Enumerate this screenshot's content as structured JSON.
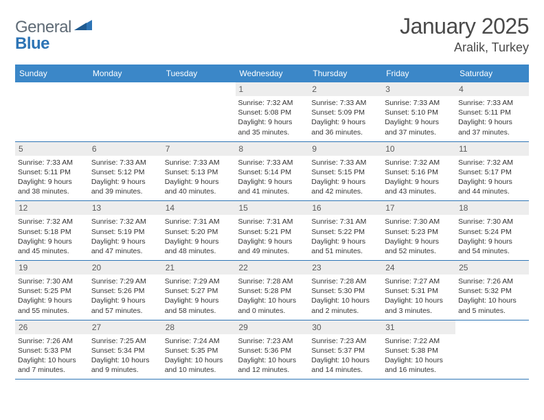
{
  "brand": {
    "part1": "General",
    "part2": "Blue"
  },
  "header": {
    "title": "January 2025",
    "location": "Aralik, Turkey"
  },
  "colors": {
    "header_bg": "#3b87c8",
    "header_text": "#ffffff",
    "daynum_bg": "#ededed",
    "cell_border": "#2d74b5",
    "logo_gray": "#5f6b76",
    "logo_blue": "#2d74b5"
  },
  "weekdays": [
    "Sunday",
    "Monday",
    "Tuesday",
    "Wednesday",
    "Thursday",
    "Friday",
    "Saturday"
  ],
  "weeks": [
    [
      {
        "day": "",
        "lines": []
      },
      {
        "day": "",
        "lines": []
      },
      {
        "day": "",
        "lines": []
      },
      {
        "day": "1",
        "lines": [
          "Sunrise: 7:32 AM",
          "Sunset: 5:08 PM",
          "Daylight: 9 hours",
          "and 35 minutes."
        ]
      },
      {
        "day": "2",
        "lines": [
          "Sunrise: 7:33 AM",
          "Sunset: 5:09 PM",
          "Daylight: 9 hours",
          "and 36 minutes."
        ]
      },
      {
        "day": "3",
        "lines": [
          "Sunrise: 7:33 AM",
          "Sunset: 5:10 PM",
          "Daylight: 9 hours",
          "and 37 minutes."
        ]
      },
      {
        "day": "4",
        "lines": [
          "Sunrise: 7:33 AM",
          "Sunset: 5:11 PM",
          "Daylight: 9 hours",
          "and 37 minutes."
        ]
      }
    ],
    [
      {
        "day": "5",
        "lines": [
          "Sunrise: 7:33 AM",
          "Sunset: 5:11 PM",
          "Daylight: 9 hours",
          "and 38 minutes."
        ]
      },
      {
        "day": "6",
        "lines": [
          "Sunrise: 7:33 AM",
          "Sunset: 5:12 PM",
          "Daylight: 9 hours",
          "and 39 minutes."
        ]
      },
      {
        "day": "7",
        "lines": [
          "Sunrise: 7:33 AM",
          "Sunset: 5:13 PM",
          "Daylight: 9 hours",
          "and 40 minutes."
        ]
      },
      {
        "day": "8",
        "lines": [
          "Sunrise: 7:33 AM",
          "Sunset: 5:14 PM",
          "Daylight: 9 hours",
          "and 41 minutes."
        ]
      },
      {
        "day": "9",
        "lines": [
          "Sunrise: 7:33 AM",
          "Sunset: 5:15 PM",
          "Daylight: 9 hours",
          "and 42 minutes."
        ]
      },
      {
        "day": "10",
        "lines": [
          "Sunrise: 7:32 AM",
          "Sunset: 5:16 PM",
          "Daylight: 9 hours",
          "and 43 minutes."
        ]
      },
      {
        "day": "11",
        "lines": [
          "Sunrise: 7:32 AM",
          "Sunset: 5:17 PM",
          "Daylight: 9 hours",
          "and 44 minutes."
        ]
      }
    ],
    [
      {
        "day": "12",
        "lines": [
          "Sunrise: 7:32 AM",
          "Sunset: 5:18 PM",
          "Daylight: 9 hours",
          "and 45 minutes."
        ]
      },
      {
        "day": "13",
        "lines": [
          "Sunrise: 7:32 AM",
          "Sunset: 5:19 PM",
          "Daylight: 9 hours",
          "and 47 minutes."
        ]
      },
      {
        "day": "14",
        "lines": [
          "Sunrise: 7:31 AM",
          "Sunset: 5:20 PM",
          "Daylight: 9 hours",
          "and 48 minutes."
        ]
      },
      {
        "day": "15",
        "lines": [
          "Sunrise: 7:31 AM",
          "Sunset: 5:21 PM",
          "Daylight: 9 hours",
          "and 49 minutes."
        ]
      },
      {
        "day": "16",
        "lines": [
          "Sunrise: 7:31 AM",
          "Sunset: 5:22 PM",
          "Daylight: 9 hours",
          "and 51 minutes."
        ]
      },
      {
        "day": "17",
        "lines": [
          "Sunrise: 7:30 AM",
          "Sunset: 5:23 PM",
          "Daylight: 9 hours",
          "and 52 minutes."
        ]
      },
      {
        "day": "18",
        "lines": [
          "Sunrise: 7:30 AM",
          "Sunset: 5:24 PM",
          "Daylight: 9 hours",
          "and 54 minutes."
        ]
      }
    ],
    [
      {
        "day": "19",
        "lines": [
          "Sunrise: 7:30 AM",
          "Sunset: 5:25 PM",
          "Daylight: 9 hours",
          "and 55 minutes."
        ]
      },
      {
        "day": "20",
        "lines": [
          "Sunrise: 7:29 AM",
          "Sunset: 5:26 PM",
          "Daylight: 9 hours",
          "and 57 minutes."
        ]
      },
      {
        "day": "21",
        "lines": [
          "Sunrise: 7:29 AM",
          "Sunset: 5:27 PM",
          "Daylight: 9 hours",
          "and 58 minutes."
        ]
      },
      {
        "day": "22",
        "lines": [
          "Sunrise: 7:28 AM",
          "Sunset: 5:28 PM",
          "Daylight: 10 hours",
          "and 0 minutes."
        ]
      },
      {
        "day": "23",
        "lines": [
          "Sunrise: 7:28 AM",
          "Sunset: 5:30 PM",
          "Daylight: 10 hours",
          "and 2 minutes."
        ]
      },
      {
        "day": "24",
        "lines": [
          "Sunrise: 7:27 AM",
          "Sunset: 5:31 PM",
          "Daylight: 10 hours",
          "and 3 minutes."
        ]
      },
      {
        "day": "25",
        "lines": [
          "Sunrise: 7:26 AM",
          "Sunset: 5:32 PM",
          "Daylight: 10 hours",
          "and 5 minutes."
        ]
      }
    ],
    [
      {
        "day": "26",
        "lines": [
          "Sunrise: 7:26 AM",
          "Sunset: 5:33 PM",
          "Daylight: 10 hours",
          "and 7 minutes."
        ]
      },
      {
        "day": "27",
        "lines": [
          "Sunrise: 7:25 AM",
          "Sunset: 5:34 PM",
          "Daylight: 10 hours",
          "and 9 minutes."
        ]
      },
      {
        "day": "28",
        "lines": [
          "Sunrise: 7:24 AM",
          "Sunset: 5:35 PM",
          "Daylight: 10 hours",
          "and 10 minutes."
        ]
      },
      {
        "day": "29",
        "lines": [
          "Sunrise: 7:23 AM",
          "Sunset: 5:36 PM",
          "Daylight: 10 hours",
          "and 12 minutes."
        ]
      },
      {
        "day": "30",
        "lines": [
          "Sunrise: 7:23 AM",
          "Sunset: 5:37 PM",
          "Daylight: 10 hours",
          "and 14 minutes."
        ]
      },
      {
        "day": "31",
        "lines": [
          "Sunrise: 7:22 AM",
          "Sunset: 5:38 PM",
          "Daylight: 10 hours",
          "and 16 minutes."
        ]
      },
      {
        "day": "",
        "lines": []
      }
    ]
  ]
}
